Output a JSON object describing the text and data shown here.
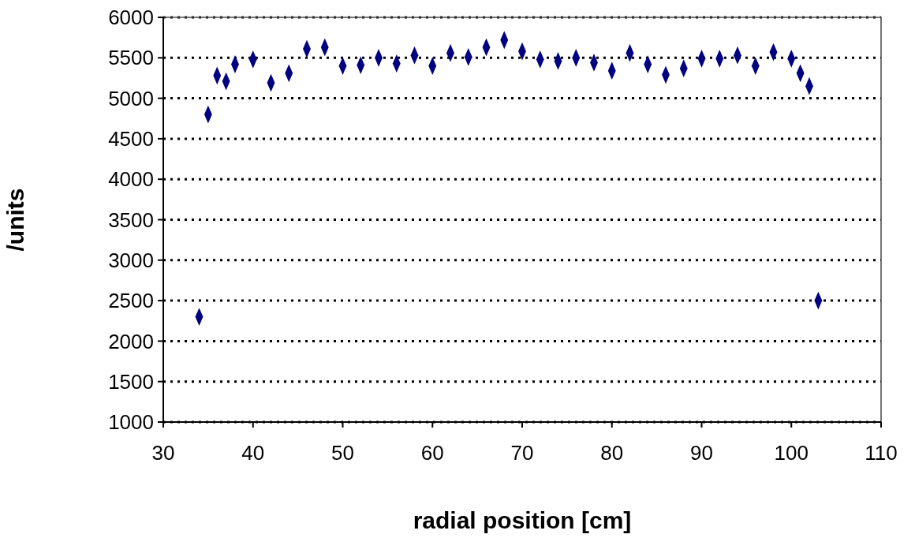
{
  "chart_data": {
    "type": "scatter",
    "xlabel": "radial position [cm]",
    "ylabel": "/units",
    "x": [
      34,
      35,
      36,
      37,
      38,
      40,
      42,
      44,
      46,
      48,
      50,
      52,
      54,
      56,
      58,
      60,
      62,
      64,
      66,
      68,
      70,
      72,
      74,
      76,
      78,
      80,
      82,
      84,
      86,
      88,
      90,
      92,
      94,
      96,
      98,
      100,
      101,
      102,
      103
    ],
    "series": [
      {
        "color": "#000080",
        "values": [
          2300,
          4800,
          5280,
          5210,
          5420,
          5480,
          5190,
          5310,
          5610,
          5630,
          5400,
          5410,
          5500,
          5430,
          5530,
          5400,
          5560,
          5510,
          5630,
          5720,
          5580,
          5480,
          5460,
          5500,
          5440,
          5340,
          5560,
          5420,
          5290,
          5370,
          5490,
          5490,
          5530,
          5400,
          5570,
          5490,
          5310,
          5150,
          2500
        ]
      }
    ],
    "xlim": [
      30,
      110
    ],
    "xticks": [
      30,
      40,
      50,
      60,
      70,
      80,
      90,
      100,
      110
    ],
    "ylim": [
      1000,
      6000
    ],
    "yticks": [
      1000,
      1500,
      2000,
      2500,
      3000,
      3500,
      4000,
      4500,
      5000,
      5500,
      6000
    ],
    "grid": "y",
    "marker": "diamond",
    "line_style": "dotted"
  }
}
